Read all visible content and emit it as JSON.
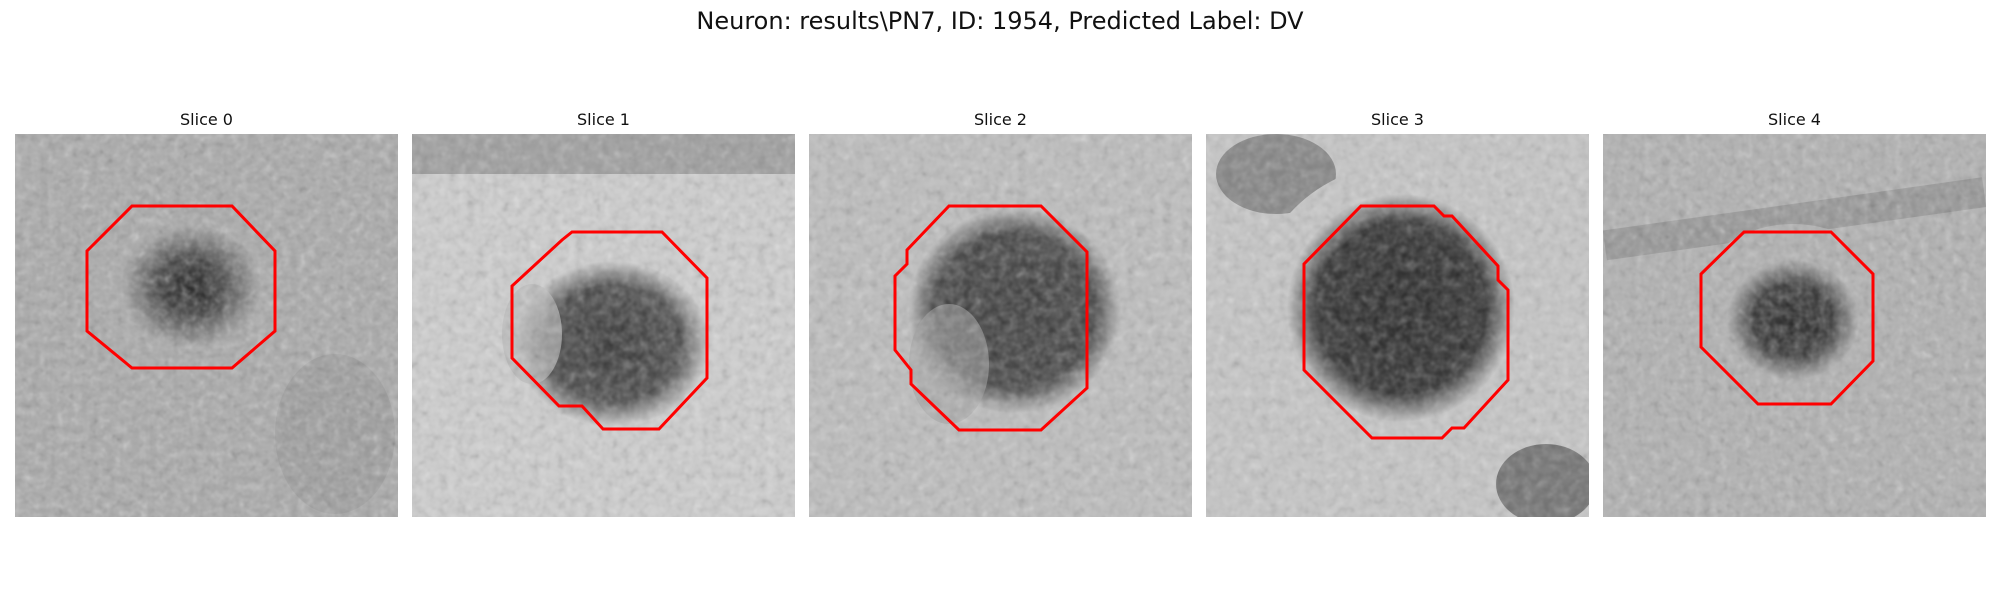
{
  "figure": {
    "title": "Neuron: results\\PN7, ID: 1954, Predicted Label: DV"
  },
  "panels": [
    {
      "title": "Slice 0",
      "image": "grayscale-microscopy-crop",
      "overlay_color": "#ff0000"
    },
    {
      "title": "Slice 1",
      "image": "grayscale-microscopy-crop",
      "overlay_color": "#ff0000"
    },
    {
      "title": "Slice 2",
      "image": "grayscale-microscopy-crop",
      "overlay_color": "#ff0000"
    },
    {
      "title": "Slice 3",
      "image": "grayscale-microscopy-crop",
      "overlay_color": "#ff0000"
    },
    {
      "title": "Slice 4",
      "image": "grayscale-microscopy-crop",
      "overlay_color": "#ff0000"
    }
  ]
}
